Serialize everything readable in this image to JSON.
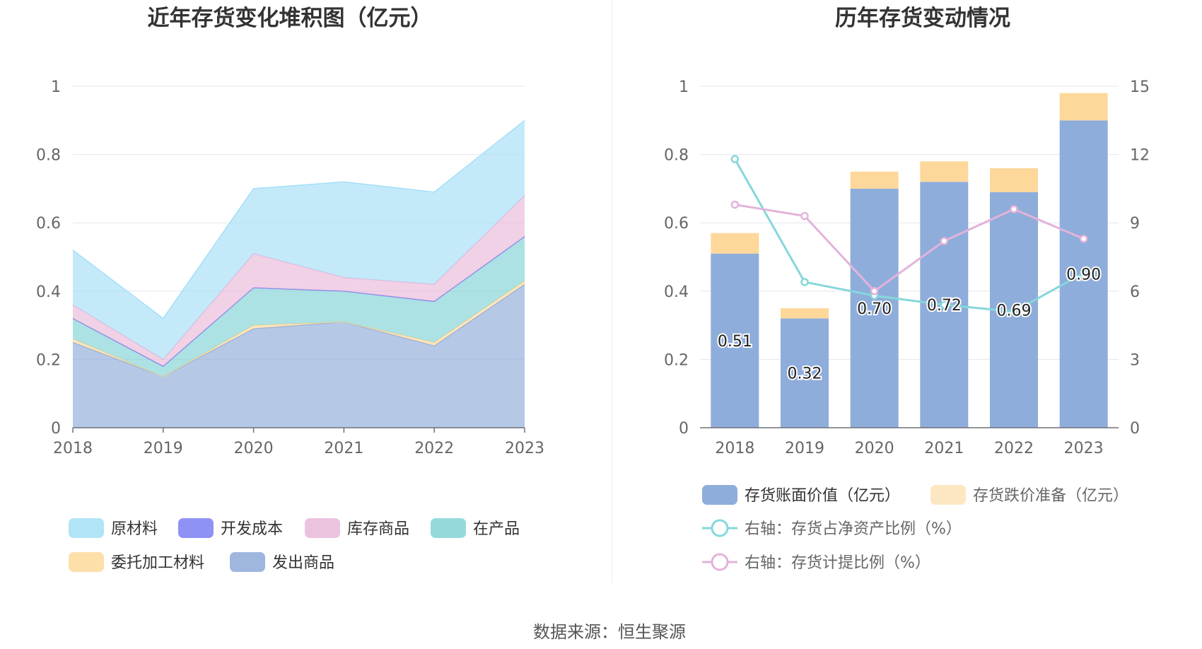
{
  "source_text": "数据来源：恒生聚源",
  "chart_data": [
    {
      "type": "area",
      "title": "近年存货变化堆积图（亿元）",
      "categories": [
        "2018",
        "2019",
        "2020",
        "2021",
        "2022",
        "2023"
      ],
      "y_ticks": [
        "0",
        "0.2",
        "0.4",
        "0.6",
        "0.8",
        "1"
      ],
      "ylim": [
        0,
        1
      ],
      "stacked": true,
      "legend_position": "bottom",
      "series": [
        {
          "name": "发出商品",
          "color": "#8eaad9",
          "values": [
            0.25,
            0.15,
            0.29,
            0.31,
            0.24,
            0.42
          ]
        },
        {
          "name": "委托加工材料",
          "color": "#fdd99b",
          "values": [
            0.01,
            0.0,
            0.01,
            0.0,
            0.01,
            0.01
          ]
        },
        {
          "name": "在产品",
          "color": "#81d3d6",
          "values": [
            0.06,
            0.03,
            0.11,
            0.09,
            0.12,
            0.13
          ]
        },
        {
          "name": "开发成本",
          "color": "#7b7ff2",
          "values": [
            0,
            0,
            0,
            0,
            0,
            0
          ]
        },
        {
          "name": "库存商品",
          "color": "#e9b9d9",
          "values": [
            0.04,
            0.02,
            0.1,
            0.04,
            0.05,
            0.12
          ]
        },
        {
          "name": "原材料",
          "color": "#a4dff7",
          "values": [
            0.16,
            0.12,
            0.19,
            0.28,
            0.27,
            0.22
          ]
        }
      ],
      "legend_order": [
        "原材料",
        "开发成本",
        "库存商品",
        "在产品",
        "委托加工材料",
        "发出商品"
      ]
    },
    {
      "type": "bar",
      "title": "历年存货变动情况",
      "categories": [
        "2018",
        "2019",
        "2020",
        "2021",
        "2022",
        "2023"
      ],
      "y_ticks_left": [
        "0",
        "0.2",
        "0.4",
        "0.6",
        "0.8",
        "1"
      ],
      "y_ticks_right": [
        "0",
        "3",
        "6",
        "9",
        "12",
        "15"
      ],
      "ylim_left": [
        0,
        1
      ],
      "ylim_right": [
        0,
        15
      ],
      "stacked": true,
      "legend_position": "bottom",
      "bar_series": [
        {
          "name": "存货账面价值（亿元）",
          "color": "#8eaddb",
          "values": [
            0.51,
            0.32,
            0.7,
            0.72,
            0.69,
            0.9
          ],
          "labels": [
            "0.51",
            "0.32",
            "0.70",
            "0.72",
            "0.69",
            "0.90"
          ]
        },
        {
          "name": "存货跌价准备（亿元）",
          "color": "#fdd89a",
          "values": [
            0.06,
            0.03,
            0.05,
            0.06,
            0.07,
            0.08
          ]
        }
      ],
      "line_series": [
        {
          "name": "右轴：存货占净资产比例（%）",
          "color": "#86d7d9",
          "axis": "right",
          "values": [
            11.8,
            6.4,
            5.8,
            5.4,
            5.1,
            6.8
          ]
        },
        {
          "name": "右轴：存货计提比例（%）",
          "color": "#e3b3da",
          "axis": "right",
          "values": [
            9.8,
            9.3,
            6.0,
            8.2,
            9.6,
            8.3
          ]
        }
      ]
    }
  ]
}
